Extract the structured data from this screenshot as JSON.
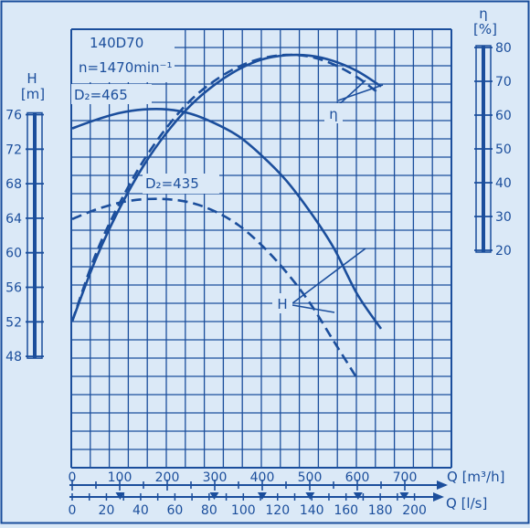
{
  "colors": {
    "background": "#dbe9f7",
    "ink": "#1b4e9c",
    "grid": "#1b4e9c"
  },
  "chart_data": {
    "type": "line",
    "title": "140D70",
    "subtitle": "n=1470min⁻¹",
    "grid": true,
    "x_primary": {
      "label": "Q [m³/h]",
      "range": [
        0,
        740
      ],
      "ticks": [
        0,
        100,
        200,
        300,
        400,
        500,
        600,
        700
      ],
      "tick_labels": [
        "0",
        "100",
        "200",
        "300",
        "400",
        "500",
        "600",
        "700"
      ]
    },
    "x_secondary": {
      "label": "Q [l/s]",
      "ticks": [
        0,
        20,
        40,
        60,
        80,
        100,
        120,
        140,
        160,
        180,
        200
      ],
      "tick_labels": [
        "0",
        "20",
        "40",
        "60",
        "80",
        "100",
        "120",
        "140",
        "160",
        "180",
        "200"
      ],
      "arrow_marks": [
        28,
        83,
        111,
        139,
        167,
        194
      ]
    },
    "y_left": {
      "label_top": "H",
      "label_unit": "[m]",
      "range": [
        48,
        76
      ],
      "ticks": [
        48,
        52,
        56,
        60,
        64,
        68,
        72,
        76
      ],
      "tick_labels": [
        "48",
        "52",
        "56",
        "60",
        "64",
        "68",
        "72",
        "76"
      ]
    },
    "y_right": {
      "label_top": "η",
      "label_unit": "[%]",
      "range": [
        20,
        80
      ],
      "ticks": [
        20,
        30,
        40,
        50,
        60,
        70,
        80
      ],
      "tick_labels": [
        "20",
        "30",
        "40",
        "50",
        "60",
        "70",
        "80"
      ]
    },
    "series": [
      {
        "name": "D₂=465",
        "axis": "H",
        "dash": false,
        "x": [
          0,
          50,
          100,
          150,
          200,
          250,
          300,
          350,
          400,
          450,
          500,
          550,
          600,
          650
        ],
        "y": [
          74.4,
          75.4,
          76.2,
          76.6,
          76.6,
          76.1,
          75.0,
          73.5,
          71.2,
          68.4,
          64.8,
          60.6,
          55.2,
          51.2
        ]
      },
      {
        "name": "D₂=435",
        "axis": "H",
        "dash": true,
        "x": [
          0,
          50,
          100,
          150,
          200,
          250,
          300,
          350,
          400,
          450,
          500,
          550,
          600
        ],
        "y": [
          63.9,
          65.0,
          65.8,
          66.2,
          66.2,
          65.8,
          64.8,
          63.2,
          60.8,
          57.8,
          54.2,
          49.8,
          45.4
        ]
      },
      {
        "name": "η (D₂=465)",
        "axis": "eta",
        "dash": false,
        "x": [
          0,
          50,
          100,
          150,
          200,
          250,
          300,
          350,
          400,
          450,
          500,
          550,
          600,
          650
        ],
        "y": [
          -1.0,
          17.5,
          32.5,
          45.0,
          55.0,
          63.0,
          69.0,
          73.5,
          76.5,
          77.7,
          77.6,
          76.0,
          73.0,
          68.5
        ]
      },
      {
        "name": "η (D₂=435)",
        "axis": "eta",
        "dash": true,
        "x": [
          0,
          50,
          100,
          150,
          200,
          250,
          300,
          350,
          400,
          450,
          500,
          550,
          600,
          640
        ],
        "y": [
          -1.0,
          19.0,
          34.0,
          46.5,
          56.5,
          64.5,
          70.2,
          74.3,
          76.8,
          77.8,
          77.3,
          75.0,
          71.2,
          67.0
        ]
      }
    ],
    "annotations": [
      {
        "text": "D₂=465",
        "target_series": 0
      },
      {
        "text": "D₂=435",
        "target_series": 1
      },
      {
        "text": "η",
        "target": "efficiency curves"
      },
      {
        "text": "H",
        "target": "head curves"
      }
    ]
  }
}
